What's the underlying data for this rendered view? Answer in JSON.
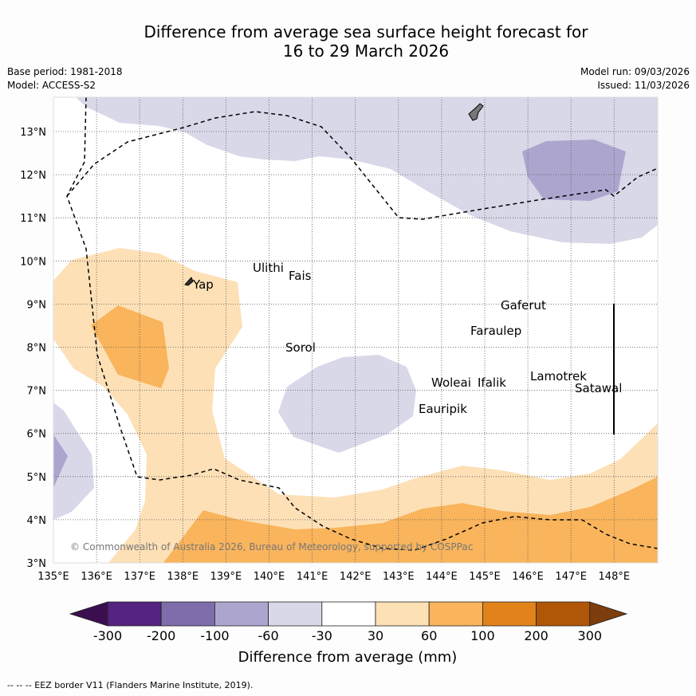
{
  "title": {
    "line1": "Difference from average sea surface height forecast for",
    "line2": "16 to 29 March 2026"
  },
  "meta": {
    "base_period": "Base period: 1981-2018",
    "model": "Model: ACCESS-S2",
    "model_run": "Model run: 09/03/2026",
    "issued": "Issued: 11/03/2026"
  },
  "map": {
    "lon_labels": [
      "135°E",
      "136°E",
      "137°E",
      "138°E",
      "139°E",
      "140°E",
      "141°E",
      "142°E",
      "143°E",
      "144°E",
      "145°E",
      "146°E",
      "147°E",
      "148°E"
    ],
    "lat_labels": [
      "3°N",
      "4°N",
      "5°N",
      "6°N",
      "7°N",
      "8°N",
      "9°N",
      "10°N",
      "11°N",
      "12°N",
      "13°N"
    ],
    "places": {
      "yap": "Yap",
      "ulithi": "Ulithi",
      "fais": "Fais",
      "sorol": "Sorol",
      "gaferut": "Gaferut",
      "faraulep": "Faraulep",
      "woleai": "Woleai",
      "ifalik": "Ifalik",
      "lamotrek": "Lamotrek",
      "satawal": "Satawal",
      "eauripik": "Eauripik"
    },
    "copyright": "© Commonwealth of Australia 2026, Bureau of Meteorology, supported by COSPPac"
  },
  "legend": {
    "tick_labels": [
      "-300",
      "-200",
      "-100",
      "-60",
      "-30",
      "30",
      "60",
      "100",
      "200",
      "300"
    ],
    "colors": [
      "#3b0f4f",
      "#54237f",
      "#7e6daa",
      "#aca6cf",
      "#d8d8e9",
      "#ffffff",
      "#fde0b6",
      "#f9b45c",
      "#e1821a",
      "#b05607",
      "#7d3d0c"
    ],
    "axis_label": "Difference from average (mm)"
  },
  "footer": "--  --  -- EEZ border V11 (Flanders Marine Institute, 2019)."
}
